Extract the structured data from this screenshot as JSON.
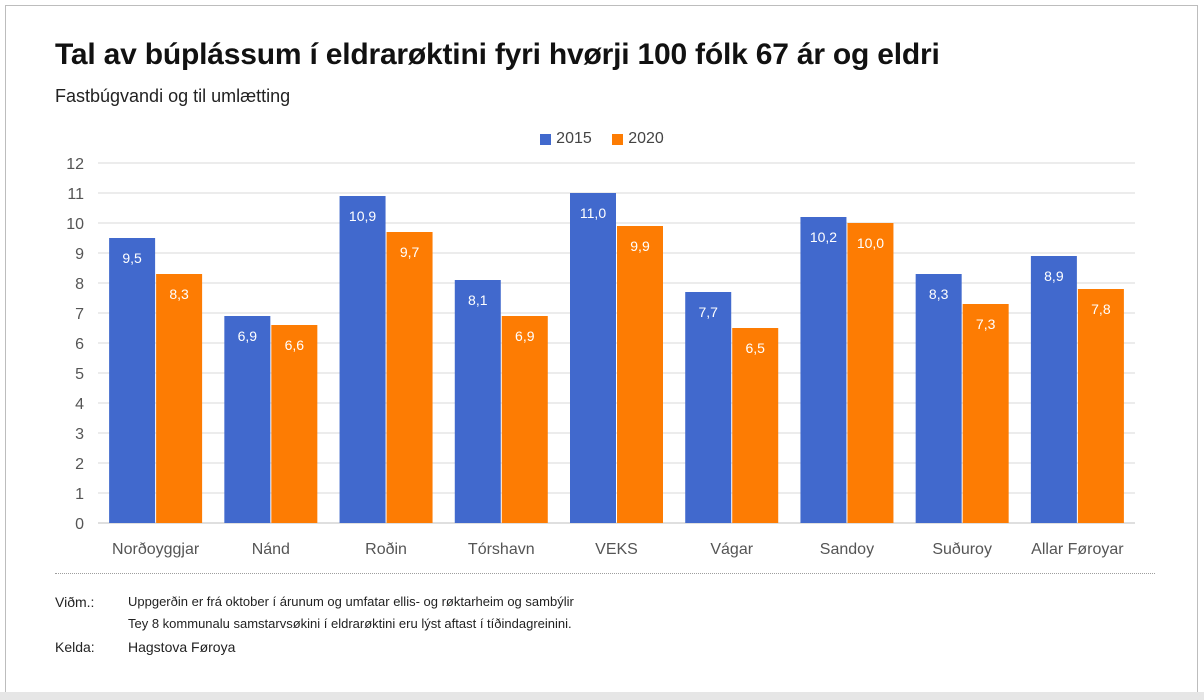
{
  "title": "Tal av búplássum í eldrarøktini fyri hvørji 100 fólk 67 ár og eldri",
  "subtitle": "Fastbúgvandi og til umlætting",
  "colors": {
    "s2015": "#4169cd",
    "s2020": "#fd7c03",
    "grid": "#d9d9d9",
    "axis_text": "#555555"
  },
  "chart_data": {
    "type": "bar",
    "title": "Tal av búplássum í eldrarøktini fyri hvørji 100 fólk 67 ár og eldri",
    "subtitle": "Fastbúgvandi og til umlætting",
    "categories": [
      "Norðoyggjar",
      "Nánd",
      "Roðin",
      "Tórshavn",
      "VEKS",
      "Vágar",
      "Sandoy",
      "Suðuroy",
      "Allar Føroyar"
    ],
    "series": [
      {
        "name": "2015",
        "values": [
          9.5,
          6.9,
          10.9,
          8.1,
          11.0,
          7.7,
          10.2,
          8.3,
          8.9
        ],
        "labels": [
          "9,5",
          "6,9",
          "10,9",
          "8,1",
          "11,0",
          "7,7",
          "10,2",
          "8,3",
          "8,9"
        ]
      },
      {
        "name": "2020",
        "values": [
          8.3,
          6.6,
          9.7,
          6.9,
          9.9,
          6.5,
          10.0,
          7.3,
          7.8
        ],
        "labels": [
          "8,3",
          "6,6",
          "9,7",
          "6,9",
          "9,9",
          "6,5",
          "10,0",
          "7,3",
          "7,8"
        ]
      }
    ],
    "ylim": [
      0,
      12
    ],
    "yticks": [
      0,
      1,
      2,
      3,
      4,
      5,
      6,
      7,
      8,
      9,
      10,
      11,
      12
    ],
    "grid": true,
    "legend": "top-center"
  },
  "notes": {
    "label": "Viðm.:",
    "line1": "Uppgerðin er frá oktober í árunum og umfatar ellis- og røktarheim og sambýlir",
    "line2": "Tey 8 kommunalu samstarvsøkini í eldrarøktini eru lýst aftast í tíðindagreinini.",
    "source_label": "Kelda:",
    "source": "Hagstova Føroya"
  }
}
